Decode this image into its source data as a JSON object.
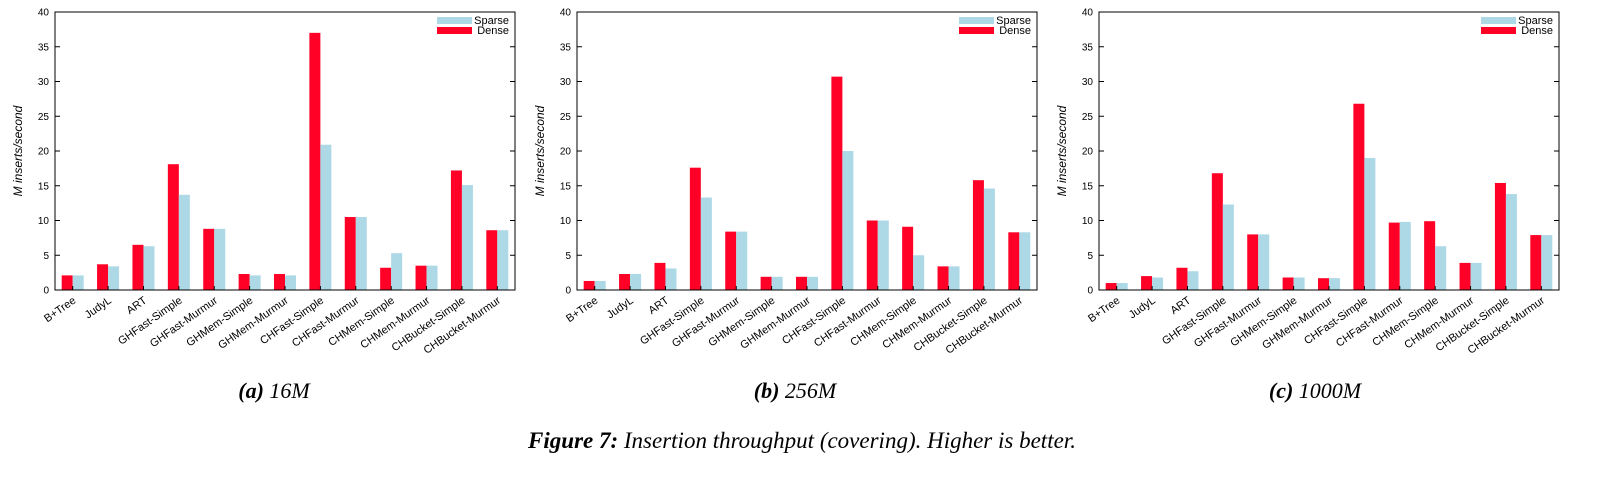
{
  "chart_data": [
    {
      "type": "bar",
      "panel_label": "(a)",
      "title": "16M",
      "ylabel": "M inserts/second",
      "ylim": [
        0,
        40
      ],
      "yticks": [
        0,
        5,
        10,
        15,
        20,
        25,
        30,
        35,
        40
      ],
      "legend_position": "top-right",
      "categories": [
        "B+Tree",
        "JudyL",
        "ART",
        "GHFast-Simple",
        "GHFast-Murmur",
        "GHMem-Simple",
        "GHMem-Murmur",
        "CHFast-Simple",
        "CHFast-Murmur",
        "CHMem-Simple",
        "CHMem-Murmur",
        "CHBucket-Simple",
        "CHBucket-Murmur"
      ],
      "series": [
        {
          "name": "Sparse",
          "color": "#add8e6",
          "values": [
            2.1,
            3.4,
            6.3,
            13.7,
            8.8,
            2.1,
            2.1,
            20.9,
            10.5,
            5.3,
            3.5,
            15.1,
            8.6
          ]
        },
        {
          "name": "Dense",
          "color": "#ff0026",
          "values": [
            2.1,
            3.7,
            6.5,
            18.1,
            8.8,
            2.3,
            2.3,
            37.0,
            10.5,
            3.2,
            3.5,
            17.2,
            8.6
          ]
        }
      ]
    },
    {
      "type": "bar",
      "panel_label": "(b)",
      "title": "256M",
      "ylabel": "M inserts/second",
      "ylim": [
        0,
        40
      ],
      "yticks": [
        0,
        5,
        10,
        15,
        20,
        25,
        30,
        35,
        40
      ],
      "legend_position": "top-right",
      "categories": [
        "B+Tree",
        "JudyL",
        "ART",
        "GHFast-Simple",
        "GHFast-Murmur",
        "GHMem-Simple",
        "GHMem-Murmur",
        "CHFast-Simple",
        "CHFast-Murmur",
        "CHMem-Simple",
        "CHMem-Murmur",
        "CHBucket-Simple",
        "CHBucket-Murmur"
      ],
      "series": [
        {
          "name": "Sparse",
          "color": "#add8e6",
          "values": [
            1.3,
            2.3,
            3.1,
            13.3,
            8.4,
            1.9,
            1.9,
            20.0,
            10.0,
            5.0,
            3.4,
            14.6,
            8.3
          ]
        },
        {
          "name": "Dense",
          "color": "#ff0026",
          "values": [
            1.3,
            2.3,
            3.9,
            17.6,
            8.4,
            1.9,
            1.9,
            30.7,
            10.0,
            9.1,
            3.4,
            15.8,
            8.3
          ]
        }
      ]
    },
    {
      "type": "bar",
      "panel_label": "(c)",
      "title": "1000M",
      "ylabel": "M inserts/second",
      "ylim": [
        0,
        40
      ],
      "yticks": [
        0,
        5,
        10,
        15,
        20,
        25,
        30,
        35,
        40
      ],
      "legend_position": "top-right",
      "categories": [
        "B+Tree",
        "JudyL",
        "ART",
        "GHFast-Simple",
        "GHFast-Murmur",
        "GHMem-Simple",
        "GHMem-Murmur",
        "CHFast-Simple",
        "CHFast-Murmur",
        "CHMem-Simple",
        "CHMem-Murmur",
        "CHBucket-Simple",
        "CHBucket-Murmur"
      ],
      "series": [
        {
          "name": "Sparse",
          "color": "#add8e6",
          "values": [
            1.0,
            1.8,
            2.7,
            12.3,
            8.0,
            1.8,
            1.7,
            19.0,
            9.8,
            6.3,
            3.9,
            13.8,
            7.9
          ]
        },
        {
          "name": "Dense",
          "color": "#ff0026",
          "values": [
            1.0,
            2.0,
            3.2,
            16.8,
            8.0,
            1.8,
            1.7,
            26.8,
            9.7,
            9.9,
            3.9,
            15.4,
            7.9
          ]
        }
      ]
    }
  ],
  "figure_caption": {
    "label": "Figure 7:",
    "text": " Insertion throughput (covering). Higher is better."
  }
}
